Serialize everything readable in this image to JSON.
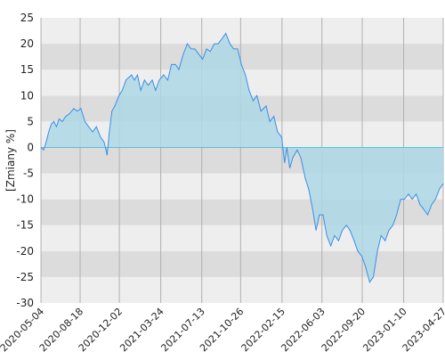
{
  "chart_data": {
    "type": "area",
    "y_label": "[Zmiany %]",
    "x": [
      "2020-05-04",
      "2020-05-11",
      "2020-05-18",
      "2020-05-25",
      "2020-06-01",
      "2020-06-08",
      "2020-06-15",
      "2020-06-22",
      "2020-07-01",
      "2020-07-10",
      "2020-07-20",
      "2020-08-01",
      "2020-08-10",
      "2020-08-20",
      "2020-08-31",
      "2020-09-10",
      "2020-09-21",
      "2020-10-01",
      "2020-10-12",
      "2020-10-22",
      "2020-10-30",
      "2020-11-05",
      "2020-11-12",
      "2020-11-20",
      "2020-12-01",
      "2020-12-10",
      "2020-12-20",
      "2021-01-04",
      "2021-01-12",
      "2021-01-20",
      "2021-01-29",
      "2021-02-08",
      "2021-02-18",
      "2021-03-01",
      "2021-03-10",
      "2021-03-20",
      "2021-04-01",
      "2021-04-12",
      "2021-04-22",
      "2021-05-03",
      "2021-05-12",
      "2021-05-24",
      "2021-06-04",
      "2021-06-14",
      "2021-06-24",
      "2021-07-05",
      "2021-07-15",
      "2021-07-26",
      "2021-08-05",
      "2021-08-16",
      "2021-08-26",
      "2021-09-06",
      "2021-09-16",
      "2021-09-27",
      "2021-10-07",
      "2021-10-18",
      "2021-10-28",
      "2021-11-08",
      "2021-11-18",
      "2021-11-29",
      "2021-12-09",
      "2021-12-20",
      "2022-01-03",
      "2022-01-13",
      "2022-01-24",
      "2022-02-03",
      "2022-02-14",
      "2022-02-22",
      "2022-02-28",
      "2022-03-08",
      "2022-03-16",
      "2022-03-28",
      "2022-04-07",
      "2022-04-19",
      "2022-04-28",
      "2022-05-09",
      "2022-05-18",
      "2022-05-27",
      "2022-06-06",
      "2022-06-16",
      "2022-06-27",
      "2022-07-07",
      "2022-07-18",
      "2022-07-28",
      "2022-08-08",
      "2022-08-18",
      "2022-08-29",
      "2022-09-08",
      "2022-09-19",
      "2022-09-29",
      "2022-10-10",
      "2022-10-20",
      "2022-10-31",
      "2022-11-10",
      "2022-11-21",
      "2022-12-01",
      "2022-12-12",
      "2022-12-22",
      "2023-01-02",
      "2023-01-12",
      "2023-01-23",
      "2023-02-02",
      "2023-02-13",
      "2023-02-23",
      "2023-03-06",
      "2023-03-16",
      "2023-03-27",
      "2023-04-06",
      "2023-04-17",
      "2023-04-27"
    ],
    "values": [
      0,
      -0.5,
      1,
      3,
      4.5,
      5,
      4,
      5.5,
      5,
      6,
      6.5,
      7.5,
      7,
      7.5,
      5,
      4,
      3,
      4,
      2,
      1,
      -1.5,
      3,
      7,
      8,
      10,
      11,
      13,
      14,
      13,
      14,
      11,
      13,
      12,
      13,
      11,
      13,
      14,
      13,
      16,
      16,
      15,
      18,
      20,
      19,
      19,
      18,
      17,
      19,
      18.5,
      20,
      20,
      21,
      22,
      20,
      19,
      19,
      16,
      14,
      11,
      9,
      10,
      7,
      8,
      5,
      6,
      3,
      2,
      -3,
      0,
      -4,
      -2,
      -0.5,
      -2,
      -6,
      -8,
      -12,
      -16,
      -13,
      -13,
      -17,
      -19,
      -17,
      -18,
      -16,
      -15,
      -16,
      -18,
      -20,
      -21,
      -23,
      -26,
      -25,
      -20,
      -17,
      -18,
      -16,
      -15,
      -13,
      -10,
      -10,
      -9,
      -10,
      -9,
      -11,
      -12,
      -13,
      -11,
      -10,
      -8,
      -7
    ],
    "line_color": "#3a8ee6",
    "fill_color": "#add8e6",
    "xlim": [
      "2020-05-04",
      "2023-04-27"
    ],
    "xticks": [
      "2020-05-04",
      "2020-08-18",
      "2020-12-02",
      "2021-03-24",
      "2021-07-13",
      "2021-10-26",
      "2022-02-15",
      "2022-06-03",
      "2022-09-20",
      "2023-01-10",
      "2023-04-27"
    ],
    "ylim": [
      -30,
      25
    ],
    "yticks": [
      -30,
      -25,
      -20,
      -15,
      -10,
      -5,
      0,
      5,
      10,
      15,
      20,
      25
    ],
    "bands": true,
    "grid": true
  }
}
